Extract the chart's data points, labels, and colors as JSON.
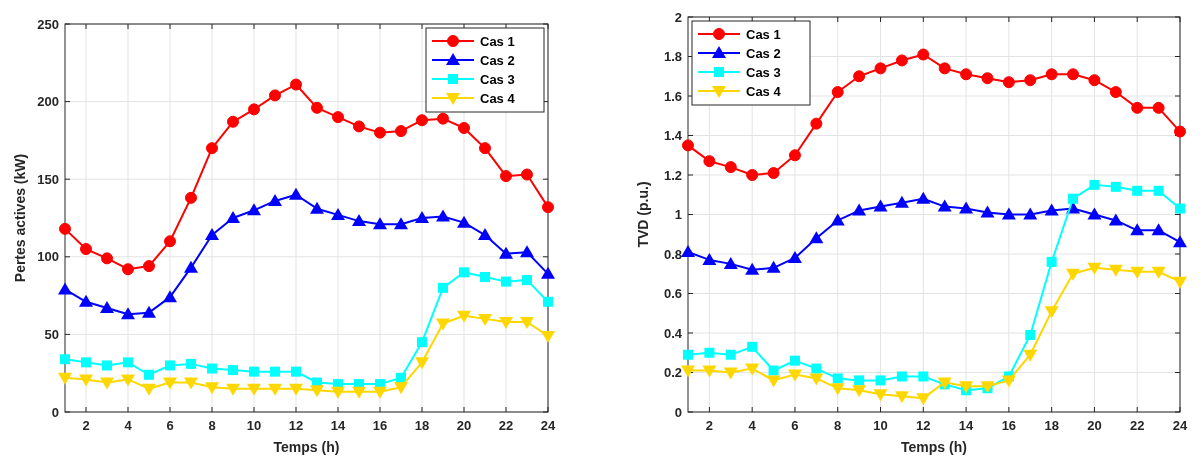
{
  "chart_data": [
    {
      "type": "line",
      "xlabel": "Temps (h)",
      "ylabel": "Pertes actives (kW)",
      "x": [
        1,
        2,
        3,
        4,
        5,
        6,
        7,
        8,
        9,
        10,
        11,
        12,
        13,
        14,
        15,
        16,
        17,
        18,
        19,
        20,
        21,
        22,
        23,
        24
      ],
      "xlim": [
        1,
        24
      ],
      "xticks": [
        2,
        4,
        6,
        8,
        10,
        12,
        14,
        16,
        18,
        20,
        22,
        24
      ],
      "ylim": [
        0,
        250
      ],
      "yticks": [
        0,
        50,
        100,
        150,
        200,
        250
      ],
      "grid": true,
      "legend": "top right",
      "line_style": "solid",
      "series": [
        {
          "name": "Cas 1",
          "color": "#ff0000",
          "marker": "circle",
          "values": [
            118,
            105,
            99,
            92,
            94,
            110,
            138,
            170,
            187,
            195,
            204,
            211,
            196,
            190,
            184,
            180,
            181,
            188,
            189,
            183,
            170,
            152,
            153,
            132
          ]
        },
        {
          "name": "Cas 2",
          "color": "#0000ff",
          "marker": "triangle",
          "values": [
            79,
            71,
            67,
            63,
            64,
            74,
            93,
            114,
            125,
            130,
            136,
            140,
            131,
            127,
            123,
            121,
            121,
            125,
            126,
            122,
            114,
            102,
            103,
            89
          ]
        },
        {
          "name": "Cas 3",
          "color": "#00ffff",
          "marker": "square",
          "values": [
            34,
            32,
            30,
            32,
            24,
            30,
            31,
            28,
            27,
            26,
            26,
            26,
            19,
            18,
            18,
            18,
            22,
            45,
            80,
            90,
            87,
            84,
            85,
            71
          ]
        },
        {
          "name": "Cas 4",
          "color": "#ffd700",
          "marker": "triangle-down",
          "values": [
            22,
            21,
            19,
            21,
            15,
            19,
            19,
            16,
            15,
            15,
            15,
            15,
            14,
            13,
            13,
            13,
            16,
            32,
            57,
            62,
            60,
            58,
            58,
            49
          ]
        }
      ]
    },
    {
      "type": "line",
      "xlabel": "Temps (h)",
      "ylabel": "TVD (p.u.)",
      "x": [
        1,
        2,
        3,
        4,
        5,
        6,
        7,
        8,
        9,
        10,
        11,
        12,
        13,
        14,
        15,
        16,
        17,
        18,
        19,
        20,
        21,
        22,
        23,
        24
      ],
      "xlim": [
        1,
        24
      ],
      "xticks": [
        2,
        4,
        6,
        8,
        10,
        12,
        14,
        16,
        18,
        20,
        22,
        24
      ],
      "ylim": [
        0,
        2
      ],
      "yticks": [
        0,
        0.2,
        0.4,
        0.6,
        0.8,
        1,
        1.2,
        1.4,
        1.6,
        1.8,
        2
      ],
      "grid": true,
      "legend": "top left",
      "line_style": "solid",
      "series": [
        {
          "name": "Cas 1",
          "color": "#ff0000",
          "marker": "circle",
          "values": [
            1.35,
            1.27,
            1.24,
            1.2,
            1.21,
            1.3,
            1.46,
            1.62,
            1.7,
            1.74,
            1.78,
            1.81,
            1.74,
            1.71,
            1.69,
            1.67,
            1.68,
            1.71,
            1.71,
            1.68,
            1.62,
            1.54,
            1.54,
            1.42
          ]
        },
        {
          "name": "Cas 2",
          "color": "#0000ff",
          "marker": "triangle",
          "values": [
            0.81,
            0.77,
            0.75,
            0.72,
            0.73,
            0.78,
            0.88,
            0.97,
            1.02,
            1.04,
            1.06,
            1.08,
            1.04,
            1.03,
            1.01,
            1,
            1,
            1.02,
            1.03,
            1,
            0.97,
            0.92,
            0.92,
            0.86
          ]
        },
        {
          "name": "Cas 3",
          "color": "#00ffff",
          "marker": "square",
          "values": [
            0.29,
            0.3,
            0.29,
            0.33,
            0.21,
            0.26,
            0.22,
            0.17,
            0.16,
            0.16,
            0.18,
            0.18,
            0.14,
            0.11,
            0.12,
            0.18,
            0.39,
            0.76,
            1.08,
            1.15,
            1.14,
            1.12,
            1.12,
            1.03
          ]
        },
        {
          "name": "Cas 4",
          "color": "#ffd700",
          "marker": "triangle-down",
          "values": [
            0.21,
            0.21,
            0.2,
            0.22,
            0.16,
            0.19,
            0.17,
            0.12,
            0.11,
            0.09,
            0.08,
            0.07,
            0.15,
            0.13,
            0.13,
            0.16,
            0.29,
            0.51,
            0.7,
            0.73,
            0.72,
            0.71,
            0.71,
            0.66
          ]
        }
      ]
    }
  ]
}
